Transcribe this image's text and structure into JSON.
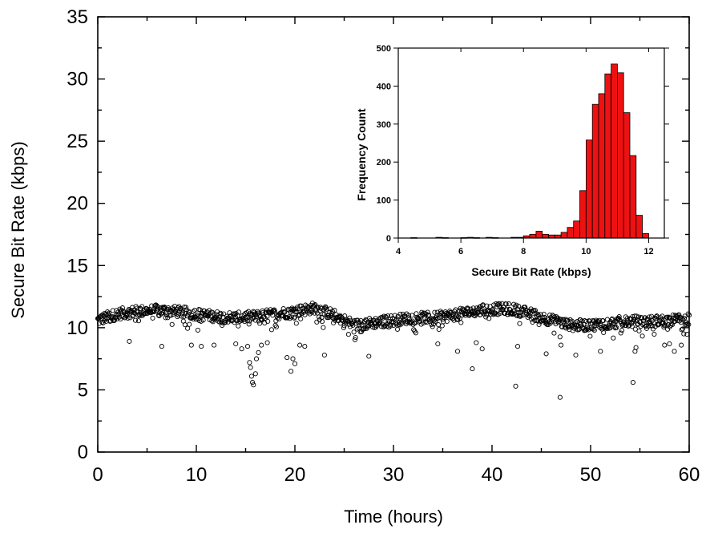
{
  "chart_data": [
    {
      "type": "scatter",
      "xlabel": "Time (hours)",
      "ylabel": "Secure Bit Rate (kbps)",
      "xlim": [
        0,
        60
      ],
      "ylim": [
        0,
        35
      ],
      "xticks": [
        0,
        10,
        20,
        30,
        40,
        50,
        60
      ],
      "yticks": [
        0,
        5,
        10,
        15,
        20,
        25,
        30,
        35
      ],
      "xtick_labels": [
        "0",
        "10",
        "20",
        "30",
        "40",
        "50",
        "60"
      ],
      "ytick_labels": [
        "0",
        "5",
        "10",
        "15",
        "20",
        "25",
        "30",
        "35"
      ],
      "marker": "open-circle",
      "trend": {
        "x": [
          0,
          2,
          4,
          6,
          8,
          10,
          12,
          14,
          16,
          18,
          20,
          22,
          24,
          26,
          28,
          30,
          32,
          34,
          36,
          38,
          40,
          42,
          44,
          46,
          48,
          50,
          52,
          54,
          56,
          58,
          60
        ],
        "y": [
          10.6,
          11.1,
          11.3,
          11.4,
          11.3,
          11.1,
          10.9,
          10.8,
          10.9,
          11.1,
          11.3,
          11.6,
          11.0,
          10.2,
          10.4,
          10.6,
          10.8,
          10.8,
          11.0,
          11.3,
          11.5,
          11.5,
          11.1,
          10.6,
          10.2,
          10.2,
          10.4,
          10.5,
          10.5,
          10.6,
          10.7
        ]
      },
      "outliers": {
        "x": [
          3.2,
          6.5,
          9.5,
          10.5,
          11.8,
          14.0,
          14.6,
          15.2,
          15.4,
          15.5,
          15.6,
          15.7,
          15.8,
          16.0,
          16.1,
          16.3,
          16.6,
          17.2,
          19.2,
          19.6,
          19.8,
          20.0,
          20.5,
          21.0,
          23.0,
          27.5,
          34.5,
          36.5,
          38.0,
          38.4,
          39.0,
          42.4,
          42.6,
          45.5,
          46.9,
          47.0,
          48.5,
          51.0,
          54.3,
          54.5,
          54.6,
          57.5,
          58.0,
          58.5,
          59.2
        ],
        "y": [
          8.9,
          8.5,
          8.6,
          8.5,
          8.6,
          8.7,
          8.3,
          8.5,
          7.2,
          6.8,
          6.1,
          5.6,
          5.4,
          6.3,
          7.5,
          8.0,
          8.6,
          8.8,
          7.6,
          6.5,
          7.5,
          7.1,
          8.6,
          8.5,
          7.8,
          7.7,
          8.7,
          8.1,
          6.7,
          8.8,
          8.3,
          5.3,
          8.5,
          7.9,
          4.4,
          8.6,
          7.8,
          8.1,
          5.6,
          8.1,
          8.4,
          8.6,
          8.7,
          8.1,
          8.6
        ]
      }
    },
    {
      "type": "bar",
      "xlabel": "Secure Bit Rate (kbps)",
      "ylabel": "Frequency Count",
      "xlim": [
        4,
        12.5
      ],
      "ylim": [
        0,
        500
      ],
      "xticks": [
        4,
        6,
        8,
        10,
        12
      ],
      "yticks": [
        0,
        100,
        200,
        300,
        400,
        500
      ],
      "xtick_labels": [
        "4",
        "6",
        "8",
        "10",
        "12"
      ],
      "ytick_labels": [
        "0",
        "100",
        "200",
        "300",
        "400",
        "500"
      ],
      "bin_width": 0.2,
      "categories": [
        4.4,
        5.2,
        5.4,
        6.0,
        6.2,
        6.4,
        6.8,
        7.0,
        7.6,
        7.8,
        8.0,
        8.2,
        8.4,
        8.6,
        8.8,
        9.0,
        9.2,
        9.4,
        9.6,
        9.8,
        10.0,
        10.2,
        10.4,
        10.6,
        10.8,
        11.0,
        11.2,
        11.4,
        11.6,
        11.8
      ],
      "values": [
        1,
        2,
        1,
        1,
        2,
        1,
        2,
        1,
        2,
        2,
        6,
        10,
        18,
        10,
        8,
        8,
        15,
        28,
        45,
        125,
        258,
        352,
        380,
        432,
        458,
        435,
        330,
        217,
        60,
        12
      ]
    }
  ],
  "colors": {
    "bar_fill": "#ee1111",
    "bar_stroke": "#000000",
    "marker_stroke": "#000000",
    "axis": "#000000"
  }
}
